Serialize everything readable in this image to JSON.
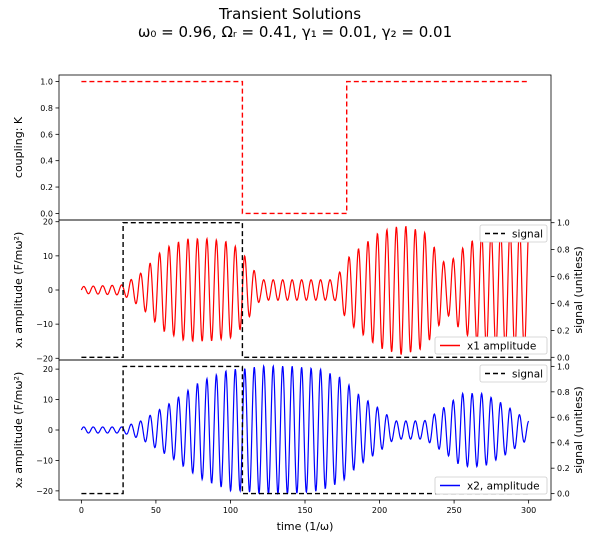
{
  "figure": {
    "title_line1": "Transient Solutions",
    "title_line2": "ω₀ =  0.96, Ωᵣ =  0.41, γ₁ =  0.01, γ₂ =  0.01"
  },
  "colors": {
    "red": "#ff0000",
    "blue": "#0000ff",
    "black": "#000000"
  },
  "chart_data": [
    {
      "type": "line",
      "name": "coupling",
      "ylabel": "coupling: K",
      "xlim": [
        -15,
        315
      ],
      "ylim": [
        -0.05,
        1.05
      ],
      "yticks": [
        "0.0",
        "0.2",
        "0.4",
        "0.6",
        "0.8",
        "1.0"
      ],
      "ytick_values": [
        0.0,
        0.2,
        0.4,
        0.6,
        0.8,
        1.0
      ],
      "grid": false,
      "series": [
        {
          "color": "#ff0000",
          "style": "dashed",
          "x": [
            0,
            108,
            108,
            178,
            178,
            300
          ],
          "y": [
            1.0,
            1.0,
            0.0,
            0.0,
            1.0,
            1.0
          ]
        }
      ]
    },
    {
      "type": "line",
      "name": "x1",
      "ylabel": "x₁ amplitude (F/mω²)",
      "y2label": "signal (unitless)",
      "xlim": [
        -15,
        315
      ],
      "ylim": [
        -20.5,
        20.5
      ],
      "yticks": [
        "20",
        "10",
        "0",
        "−10",
        "−20"
      ],
      "ytick_values": [
        20,
        10,
        0,
        -10,
        -20
      ],
      "y2lim": [
        -0.02,
        1.02
      ],
      "y2ticks": [
        "1.0",
        "0.8",
        "0.6",
        "0.4",
        "0.2",
        "0.0"
      ],
      "y2tick_values": [
        1.0,
        0.8,
        0.6,
        0.4,
        0.2,
        0.0
      ],
      "legend_top": {
        "label": "signal",
        "position": "top-right"
      },
      "legend_bottom": {
        "label": "x1 amplitude",
        "position": "bottom-right"
      },
      "signal": {
        "x": [
          0,
          28,
          28,
          108,
          108,
          300
        ],
        "y": [
          0,
          0,
          1,
          1,
          0,
          0
        ]
      },
      "envelope": {
        "x": [
          0,
          28,
          40,
          55,
          70,
          85,
          100,
          108,
          120,
          150,
          170,
          180,
          200,
          215,
          230,
          245,
          255,
          270,
          290,
          300
        ],
        "amp": [
          1.0,
          1.5,
          5,
          12,
          15,
          15,
          14,
          11,
          3,
          3,
          3,
          10,
          17,
          19,
          17,
          7,
          12,
          17,
          18,
          18
        ]
      },
      "omega": 0.96
    },
    {
      "type": "line",
      "name": "x2",
      "ylabel": "x₂ amplitude (F/mω²)",
      "xlabel": "time (1/ω)",
      "y2label": "signal (unitless)",
      "xlim": [
        -15,
        315
      ],
      "ylim": [
        -23,
        23
      ],
      "yticks": [
        "20",
        "10",
        "0",
        "−10",
        "−20"
      ],
      "ytick_values": [
        20,
        10,
        0,
        -10,
        -20
      ],
      "y2lim": [
        -0.05,
        1.05
      ],
      "y2ticks": [
        "1.0",
        "0.8",
        "0.6",
        "0.4",
        "0.2",
        "0.0"
      ],
      "y2tick_values": [
        1.0,
        0.8,
        0.6,
        0.4,
        0.2,
        0.0
      ],
      "xticks": [
        "0",
        "50",
        "100",
        "150",
        "200",
        "250",
        "300"
      ],
      "xtick_values": [
        0,
        50,
        100,
        150,
        200,
        250,
        300
      ],
      "legend_top": {
        "label": "signal",
        "position": "top-right"
      },
      "legend_bottom": {
        "label": "x2, amplitude",
        "position": "bottom-right"
      },
      "signal": {
        "x": [
          0,
          28,
          28,
          108,
          108,
          300
        ],
        "y": [
          0,
          0,
          1,
          1,
          0,
          0
        ]
      },
      "envelope": {
        "x": [
          0,
          28,
          40,
          60,
          80,
          100,
          108,
          120,
          140,
          160,
          175,
          185,
          200,
          210,
          230,
          245,
          255,
          270,
          285,
          300
        ],
        "amp": [
          1.0,
          1.0,
          3,
          9,
          16,
          20,
          20,
          21,
          21,
          20,
          17,
          12,
          7,
          3,
          3,
          8,
          12,
          12,
          8,
          3
        ]
      },
      "omega": 0.96
    }
  ]
}
